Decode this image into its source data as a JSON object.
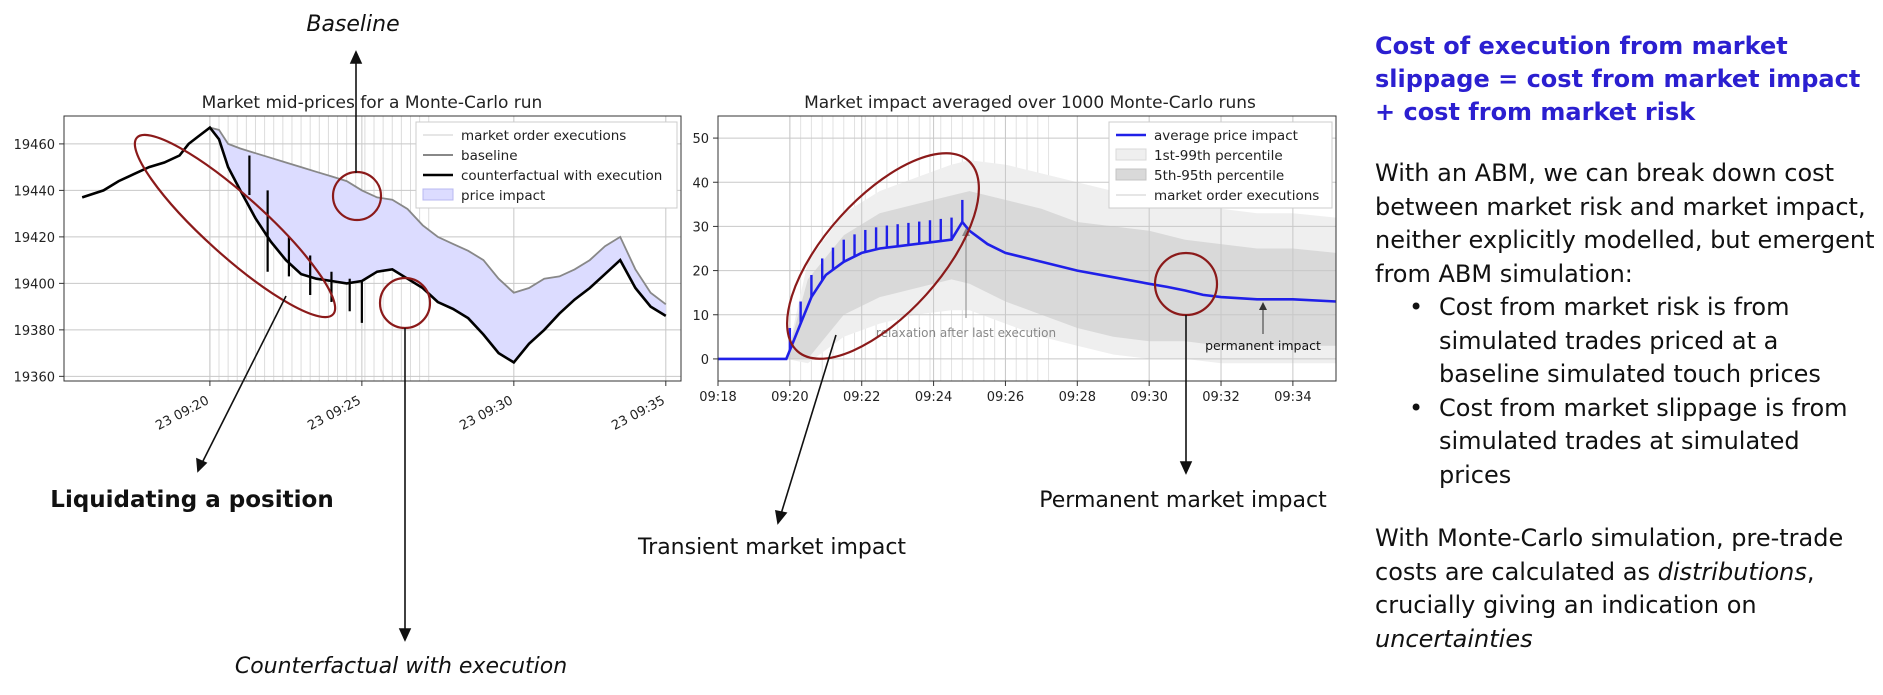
{
  "annotations": {
    "baseline": "Baseline",
    "liquidating": "Liquidating a position",
    "counterfactual": "Counterfactual with execution",
    "transient": "Transient market impact",
    "permanent": "Permanent market impact"
  },
  "side_panel": {
    "headline": "Cost of execution from market slippage = cost from market impact + cost from market risk",
    "intro": "With an ABM, we can break down cost between market risk and market impact, neither explicitly modelled, but emergent from ABM simulation:",
    "bullets": [
      "Cost from market risk is from simulated trades priced at a baseline simulated touch prices",
      "Cost from market slippage is from simulated trades at simulated prices"
    ],
    "mc_prefix": "With Monte-Carlo simulation, pre-trade costs are calculated as ",
    "mc_em1": "distributions",
    "mc_mid": ", crucially giving an indication on ",
    "mc_em2": "uncertainties"
  },
  "colors": {
    "accent": "#2b1fd0",
    "circle": "#8b1a1a",
    "impact_line": "#2020e8",
    "impact_fill": "#dcdcff"
  },
  "chart_data": [
    {
      "type": "line",
      "title": "Market mid-prices for a Monte-Carlo run",
      "x_ticks": [
        "23 09:20",
        "23 09:25",
        "23 09:30",
        "23 09:35"
      ],
      "x_tick_minutes": [
        20,
        25,
        30,
        35
      ],
      "xlim_minutes": [
        15.2,
        35.5
      ],
      "y_ticks": [
        19360,
        19380,
        19400,
        19420,
        19440,
        19460
      ],
      "ylim": [
        19358,
        19472
      ],
      "legend": [
        "market order executions",
        "baseline",
        "counterfactual with execution",
        "price impact"
      ],
      "legend_position": "top-right",
      "grid": true,
      "executions_minutes": [
        20.0,
        20.3,
        20.6,
        20.9,
        21.2,
        21.5,
        21.8,
        22.1,
        22.4,
        22.7,
        23.0,
        23.3,
        23.6,
        23.9,
        24.2,
        24.5,
        24.8,
        25.1,
        25.4,
        25.7,
        26.0,
        26.3,
        26.6,
        26.9,
        27.2
      ],
      "series": [
        {
          "name": "baseline",
          "x": [
            15.8,
            16.5,
            17.0,
            17.5,
            18.0,
            18.5,
            19.0,
            19.3,
            19.6,
            20.0,
            20.3,
            20.6,
            21.0,
            21.5,
            22.0,
            22.5,
            23.0,
            23.5,
            24.0,
            24.5,
            25.0,
            25.5,
            26.0,
            26.5,
            27.0,
            27.5,
            28.0,
            28.5,
            29.0,
            29.5,
            30.0,
            30.5,
            31.0,
            31.5,
            32.0,
            32.5,
            33.0,
            33.5,
            34.0,
            34.5,
            35.0
          ],
          "y": [
            19437,
            19440,
            19444,
            19447,
            19450,
            19452,
            19455,
            19460,
            19463,
            19467,
            19466,
            19460,
            19458,
            19456,
            19454,
            19452,
            19450,
            19448,
            19446,
            19444,
            19440,
            19437,
            19436,
            19432,
            19425,
            19420,
            19417,
            19414,
            19410,
            19402,
            19396,
            19398,
            19402,
            19403,
            19406,
            19410,
            19416,
            19420,
            19406,
            19396,
            19391
          ]
        },
        {
          "name": "counterfactual with execution",
          "x": [
            15.8,
            16.5,
            17.0,
            17.5,
            18.0,
            18.5,
            19.0,
            19.3,
            19.6,
            20.0,
            20.3,
            20.6,
            21.0,
            21.5,
            22.0,
            22.5,
            23.0,
            23.5,
            24.0,
            24.5,
            25.0,
            25.5,
            26.0,
            26.5,
            27.0,
            27.5,
            28.0,
            28.5,
            29.0,
            29.5,
            30.0,
            30.5,
            31.0,
            31.5,
            32.0,
            32.5,
            33.0,
            33.5,
            34.0,
            34.5,
            35.0
          ],
          "y": [
            19437,
            19440,
            19444,
            19447,
            19450,
            19452,
            19455,
            19460,
            19463,
            19467,
            19462,
            19450,
            19440,
            19428,
            19418,
            19410,
            19404,
            19402,
            19401,
            19400,
            19401,
            19405,
            19406,
            19402,
            19398,
            19392,
            19389,
            19385,
            19378,
            19370,
            19366,
            19374,
            19380,
            19387,
            19393,
            19398,
            19404,
            19410,
            19398,
            19390,
            19386
          ]
        }
      ],
      "spikes": [
        {
          "x": 21.3,
          "y_top": 19455,
          "y_bottom": 19438
        },
        {
          "x": 21.9,
          "y_top": 19440,
          "y_bottom": 19405
        },
        {
          "x": 22.6,
          "y_top": 19420,
          "y_bottom": 19403
        },
        {
          "x": 23.3,
          "y_top": 19412,
          "y_bottom": 19395
        },
        {
          "x": 24.0,
          "y_top": 19405,
          "y_bottom": 19392
        },
        {
          "x": 24.6,
          "y_top": 19402,
          "y_bottom": 19388
        },
        {
          "x": 25.0,
          "y_top": 19401,
          "y_bottom": 19383
        }
      ]
    },
    {
      "type": "line",
      "title": "Market impact averaged over 1000 Monte-Carlo runs",
      "x_ticks": [
        "09:18",
        "09:20",
        "09:22",
        "09:24",
        "09:26",
        "09:28",
        "09:30",
        "09:32",
        "09:34"
      ],
      "x_tick_minutes": [
        18,
        20,
        22,
        24,
        26,
        28,
        30,
        32,
        34
      ],
      "xlim_minutes": [
        18,
        35.2
      ],
      "y_ticks": [
        0,
        10,
        20,
        30,
        40,
        50
      ],
      "ylim": [
        -5,
        55
      ],
      "legend": [
        "average price impact",
        "1st-99th percentile",
        "5th-95th percentile",
        "market order executions"
      ],
      "legend_position": "top-right",
      "grid": true,
      "annotations": [
        {
          "text": "relaxation after last execution",
          "x": 24.8,
          "y": 12
        },
        {
          "text": "permanent impact",
          "x": 33.0,
          "y": 13
        }
      ],
      "series": [
        {
          "name": "average price impact",
          "x": [
            18.0,
            19.9,
            20.0,
            20.3,
            20.6,
            21.0,
            21.5,
            22.0,
            22.5,
            23.0,
            23.5,
            24.0,
            24.5,
            24.8,
            25.0,
            25.5,
            26.0,
            27.0,
            28.0,
            29.0,
            30.0,
            30.5,
            31.0,
            31.5,
            32.0,
            33.0,
            34.0,
            35.2
          ],
          "y": [
            0,
            0,
            2,
            8,
            14,
            19,
            22,
            24,
            25,
            25.5,
            26,
            26.5,
            27,
            31,
            29,
            26,
            24,
            22,
            20,
            18.5,
            17,
            16.3,
            15.5,
            14.5,
            14,
            13.5,
            13.5,
            13
          ]
        },
        {
          "name": "5th-95th percentile upper",
          "x": [
            19.9,
            20.5,
            21.5,
            22.5,
            23.5,
            24.5,
            25.0,
            26.0,
            27.0,
            28.0,
            29.0,
            30.0,
            31.0,
            32.0,
            33.0,
            34.0,
            35.2
          ],
          "y": [
            0,
            18,
            28,
            33,
            35,
            37,
            38,
            36,
            34,
            31,
            30,
            29,
            27,
            26,
            25,
            25,
            24
          ]
        },
        {
          "name": "5th-95th percentile lower",
          "x": [
            19.9,
            20.5,
            21.5,
            22.5,
            23.5,
            24.5,
            25.0,
            26.0,
            27.0,
            28.0,
            29.0,
            30.0,
            31.0,
            32.0,
            33.0,
            34.0,
            35.2
          ],
          "y": [
            0,
            0,
            10,
            14,
            16,
            18,
            17,
            13,
            10,
            7,
            5,
            4,
            4,
            3,
            3,
            3,
            3
          ]
        },
        {
          "name": "1st-99th percentile upper",
          "x": [
            19.9,
            20.5,
            21.5,
            22.5,
            23.5,
            24.5,
            25.0,
            26.0,
            27.0,
            28.0,
            29.0,
            30.0,
            31.0,
            32.0,
            33.0,
            34.0,
            35.2
          ],
          "y": [
            0,
            22,
            33,
            38,
            41,
            44,
            45,
            44,
            42,
            40,
            38,
            36,
            35,
            34,
            33,
            33,
            32
          ]
        },
        {
          "name": "1st-99th percentile lower",
          "x": [
            19.9,
            20.5,
            21.5,
            22.5,
            23.5,
            24.5,
            25.0,
            26.0,
            27.0,
            28.0,
            29.0,
            30.0,
            31.0,
            32.0,
            33.0,
            34.0,
            35.2
          ],
          "y": [
            0,
            -1,
            5,
            8,
            10,
            11,
            11,
            8,
            5,
            3,
            1,
            0,
            0,
            -1,
            -1,
            -1,
            -1
          ]
        }
      ]
    }
  ]
}
